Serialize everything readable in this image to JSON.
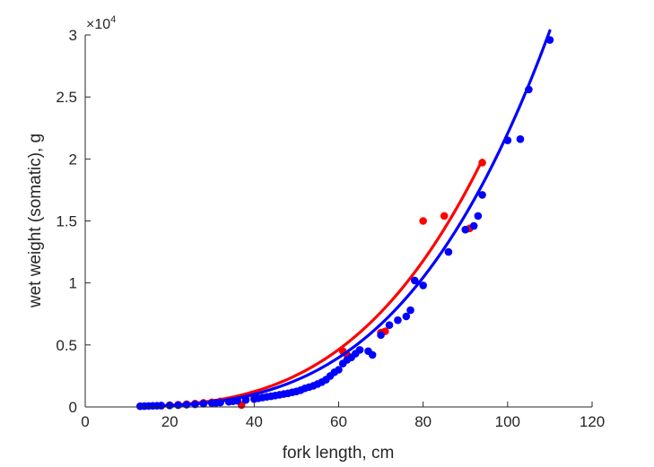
{
  "chart_data": {
    "type": "scatter",
    "title": "",
    "xlabel": "fork length, cm",
    "ylabel": "wet weight (somatic), g",
    "xlim": [
      0,
      120
    ],
    "ylim": [
      0,
      30000
    ],
    "xticks": [
      0,
      20,
      40,
      60,
      80,
      100,
      120
    ],
    "yticks": [
      0,
      5000,
      10000,
      15000,
      20000,
      25000,
      30000
    ],
    "ytick_labels": [
      "0",
      "0.5",
      "1",
      "1.5",
      "2",
      "2.5",
      "3"
    ],
    "y_exponent_label": "×10",
    "y_exponent_power": "4",
    "grid": false,
    "series": [
      {
        "color": "#ff0000",
        "points": [
          [
            18,
            100
          ],
          [
            20,
            140
          ],
          [
            22,
            180
          ],
          [
            24,
            220
          ],
          [
            26,
            270
          ],
          [
            28,
            330
          ],
          [
            30,
            380
          ],
          [
            32,
            450
          ],
          [
            34,
            520
          ],
          [
            36,
            600
          ],
          [
            37,
            150
          ],
          [
            38,
            700
          ],
          [
            40,
            850
          ],
          [
            61,
            4500
          ],
          [
            62,
            4200
          ],
          [
            70,
            6000
          ],
          [
            71,
            6100
          ],
          [
            80,
            15000
          ],
          [
            85,
            15400
          ],
          [
            91,
            14400
          ],
          [
            94,
            19700
          ]
        ],
        "fit": {
          "a": 0.0077,
          "b": 3.25,
          "x_range": [
            17,
            94
          ]
        }
      },
      {
        "color": "#0000ff",
        "points": [
          [
            13,
            60
          ],
          [
            14,
            70
          ],
          [
            15,
            80
          ],
          [
            16,
            90
          ],
          [
            17,
            100
          ],
          [
            18,
            110
          ],
          [
            20,
            120
          ],
          [
            22,
            150
          ],
          [
            24,
            180
          ],
          [
            26,
            210
          ],
          [
            28,
            260
          ],
          [
            30,
            300
          ],
          [
            31,
            340
          ],
          [
            32,
            360
          ],
          [
            34,
            420
          ],
          [
            35,
            460
          ],
          [
            36,
            500
          ],
          [
            38,
            560
          ],
          [
            40,
            640
          ],
          [
            41,
            700
          ],
          [
            42,
            760
          ],
          [
            43,
            820
          ],
          [
            44,
            860
          ],
          [
            45,
            920
          ],
          [
            46,
            980
          ],
          [
            47,
            1040
          ],
          [
            48,
            1100
          ],
          [
            49,
            1180
          ],
          [
            50,
            1250
          ],
          [
            51,
            1350
          ],
          [
            52,
            1500
          ],
          [
            53,
            1600
          ],
          [
            54,
            1700
          ],
          [
            55,
            1850
          ],
          [
            56,
            2000
          ],
          [
            57,
            2200
          ],
          [
            58,
            2500
          ],
          [
            59,
            2800
          ],
          [
            60,
            3000
          ],
          [
            61,
            3500
          ],
          [
            62,
            3800
          ],
          [
            63,
            4000
          ],
          [
            64,
            4300
          ],
          [
            65,
            4600
          ],
          [
            67,
            4500
          ],
          [
            68,
            4200
          ],
          [
            70,
            5800
          ],
          [
            72,
            6600
          ],
          [
            74,
            7000
          ],
          [
            76,
            7300
          ],
          [
            77,
            7800
          ],
          [
            78,
            10200
          ],
          [
            80,
            9800
          ],
          [
            86,
            12500
          ],
          [
            90,
            14300
          ],
          [
            92,
            14600
          ],
          [
            93,
            15400
          ],
          [
            94,
            17100
          ],
          [
            100,
            21500
          ],
          [
            103,
            21600
          ],
          [
            105,
            25600
          ],
          [
            110,
            29600
          ]
        ],
        "fit": {
          "a": 0.0044,
          "b": 3.35,
          "x_range": [
            13,
            110
          ]
        }
      }
    ]
  }
}
